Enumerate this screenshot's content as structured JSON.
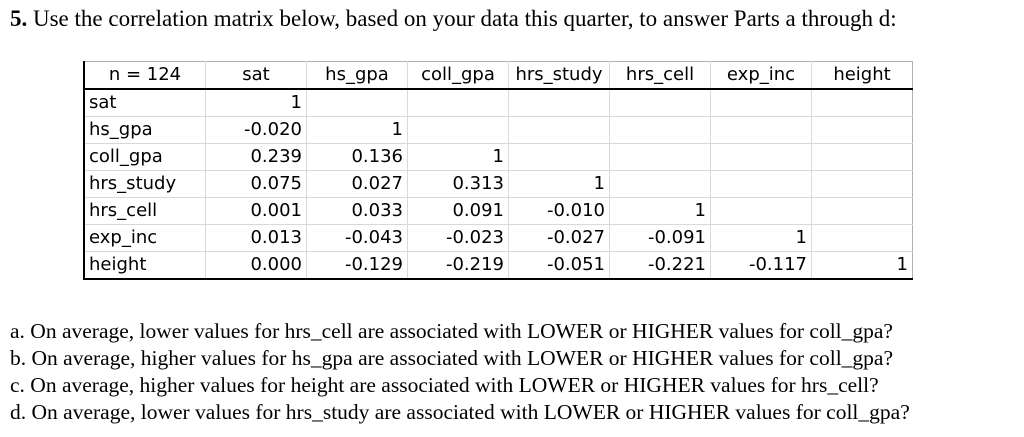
{
  "heading": {
    "number": "5.",
    "text": "Use the correlation matrix below, based on your data this quarter, to answer Parts a through d:"
  },
  "table": {
    "corner": "n = 124",
    "columns": [
      "sat",
      "hs_gpa",
      "coll_gpa",
      "hrs_study",
      "hrs_cell",
      "exp_inc",
      "height"
    ],
    "rows": [
      {
        "label": "sat",
        "values": [
          "1",
          "",
          "",
          "",
          "",
          "",
          ""
        ]
      },
      {
        "label": "hs_gpa",
        "values": [
          "-0.020",
          "1",
          "",
          "",
          "",
          "",
          ""
        ]
      },
      {
        "label": "coll_gpa",
        "values": [
          "0.239",
          "0.136",
          "1",
          "",
          "",
          "",
          ""
        ]
      },
      {
        "label": "hrs_study",
        "values": [
          "0.075",
          "0.027",
          "0.313",
          "1",
          "",
          "",
          ""
        ]
      },
      {
        "label": "hrs_cell",
        "values": [
          "0.001",
          "0.033",
          "0.091",
          "-0.010",
          "1",
          "",
          ""
        ]
      },
      {
        "label": "exp_inc",
        "values": [
          "0.013",
          "-0.043",
          "-0.023",
          "-0.027",
          "-0.091",
          "1",
          ""
        ]
      },
      {
        "label": "height",
        "values": [
          "0.000",
          "-0.129",
          "-0.219",
          "-0.051",
          "-0.221",
          "-0.117",
          "1"
        ]
      }
    ]
  },
  "questions": [
    "a. On average, lower values for hrs_cell are associated with LOWER or HIGHER values for coll_gpa?",
    "b. On average, higher values for hs_gpa are associated with LOWER or HIGHER values for coll_gpa?",
    "c. On average, higher values for height are associated with LOWER or HIGHER values for hrs_cell?",
    "d. On average, lower values for hrs_study are associated with LOWER or HIGHER values for coll_gpa?"
  ]
}
